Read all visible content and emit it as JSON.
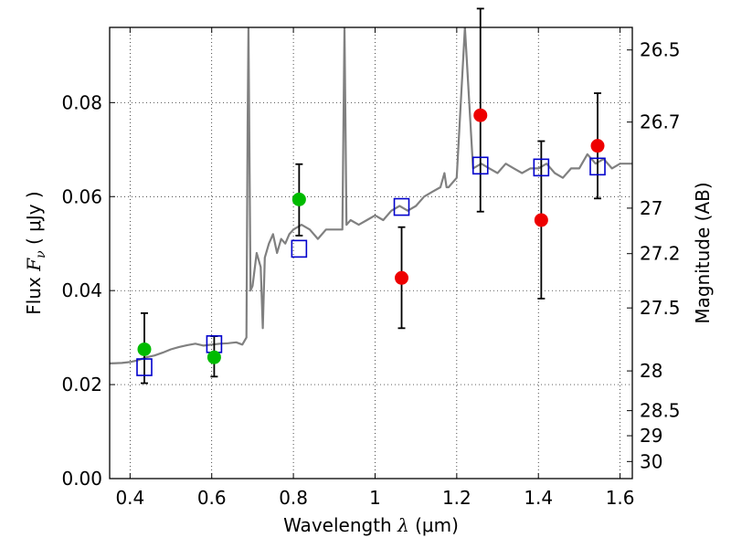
{
  "chart_data": {
    "type": "scatter",
    "xlabel": "Wavelength",
    "xlabel_symbol": "λ",
    "xlabel_unit": "(μm)",
    "ylabel": "Flux",
    "ylabel_symbol": "F",
    "ylabel_subscript": "ν",
    "ylabel_unit": "( μJy )",
    "y2label": "Magnitude (AB)",
    "xlim": [
      0.35,
      1.63
    ],
    "ylim": [
      0.0,
      0.096
    ],
    "grid": true,
    "x_ticks": [
      0.4,
      0.6,
      0.8,
      1.0,
      1.2,
      1.4,
      1.6
    ],
    "x_tick_labels": [
      "0.4",
      "0.6",
      "0.8",
      "1",
      "1.2",
      "1.4",
      "1.6"
    ],
    "y_ticks": [
      0.0,
      0.02,
      0.04,
      0.06,
      0.08
    ],
    "y_tick_labels": [
      "0.00",
      "0.02",
      "0.04",
      "0.06",
      "0.08"
    ],
    "y2_tick_labels": [
      "26.5",
      "26.7",
      "27",
      "27.2",
      "27.5",
      "28",
      "28.5",
      "29",
      "30"
    ],
    "colors": {
      "model": "#808080",
      "detection": "#00bb00",
      "measurement": "#ee0000",
      "model_photometry": "#0000cc",
      "errorbar": "#000000"
    },
    "series": [
      {
        "points": [
          {
            "x": 0.435,
            "y": 0.0275,
            "yerr_low": 0.0072,
            "yerr_high": 0.0077
          },
          {
            "x": 0.606,
            "y": 0.0258,
            "yerr_low": 0.0041,
            "yerr_high": 0.0045
          },
          {
            "x": 0.814,
            "y": 0.0594,
            "yerr_low": 0.0077,
            "yerr_high": 0.0075
          }
        ]
      },
      {
        "points": [
          {
            "x": 1.065,
            "y": 0.0427,
            "yerr_low": 0.0107,
            "yerr_high": 0.0108
          },
          {
            "x": 1.258,
            "y": 0.0773,
            "yerr_low": 0.0205,
            "yerr_high": 0.0227
          },
          {
            "x": 1.407,
            "y": 0.055,
            "yerr_low": 0.0167,
            "yerr_high": 0.0168
          },
          {
            "x": 1.545,
            "y": 0.0708,
            "yerr_low": 0.0112,
            "yerr_high": 0.0112
          }
        ]
      },
      {
        "points": [
          {
            "x": 0.435,
            "y": 0.0237
          },
          {
            "x": 0.606,
            "y": 0.0286
          },
          {
            "x": 0.814,
            "y": 0.0489
          },
          {
            "x": 1.065,
            "y": 0.0578
          },
          {
            "x": 1.258,
            "y": 0.0666
          },
          {
            "x": 1.407,
            "y": 0.0662
          },
          {
            "x": 1.545,
            "y": 0.0664
          }
        ]
      },
      {
        "type": "line",
        "x": [
          0.35,
          0.38,
          0.4,
          0.42,
          0.44,
          0.46,
          0.48,
          0.5,
          0.52,
          0.54,
          0.56,
          0.58,
          0.6,
          0.62,
          0.64,
          0.66,
          0.675,
          0.685,
          0.688,
          0.69,
          0.695,
          0.7,
          0.71,
          0.72,
          0.725,
          0.73,
          0.74,
          0.75,
          0.76,
          0.77,
          0.78,
          0.79,
          0.8,
          0.82,
          0.84,
          0.86,
          0.88,
          0.9,
          0.92,
          0.925,
          0.93,
          0.94,
          0.96,
          0.98,
          1.0,
          1.02,
          1.04,
          1.06,
          1.08,
          1.1,
          1.12,
          1.14,
          1.16,
          1.17,
          1.175,
          1.18,
          1.2,
          1.22,
          1.24,
          1.26,
          1.28,
          1.3,
          1.32,
          1.34,
          1.36,
          1.38,
          1.4,
          1.42,
          1.44,
          1.46,
          1.48,
          1.5,
          1.52,
          1.54,
          1.56,
          1.58,
          1.6,
          1.63
        ],
        "y": [
          0.0245,
          0.0246,
          0.0248,
          0.0252,
          0.0258,
          0.0262,
          0.0268,
          0.0275,
          0.028,
          0.0284,
          0.0287,
          0.0283,
          0.0285,
          0.0287,
          0.0288,
          0.029,
          0.0285,
          0.03,
          0.075,
          0.096,
          0.04,
          0.041,
          0.048,
          0.045,
          0.032,
          0.047,
          0.05,
          0.052,
          0.048,
          0.051,
          0.05,
          0.052,
          0.053,
          0.054,
          0.053,
          0.051,
          0.053,
          0.053,
          0.053,
          0.096,
          0.054,
          0.055,
          0.054,
          0.055,
          0.056,
          0.055,
          0.057,
          0.058,
          0.057,
          0.058,
          0.06,
          0.061,
          0.062,
          0.065,
          0.062,
          0.062,
          0.064,
          0.096,
          0.066,
          0.067,
          0.066,
          0.065,
          0.067,
          0.066,
          0.065,
          0.066,
          0.066,
          0.067,
          0.065,
          0.064,
          0.066,
          0.066,
          0.069,
          0.067,
          0.068,
          0.066,
          0.067,
          0.067
        ]
      }
    ]
  }
}
